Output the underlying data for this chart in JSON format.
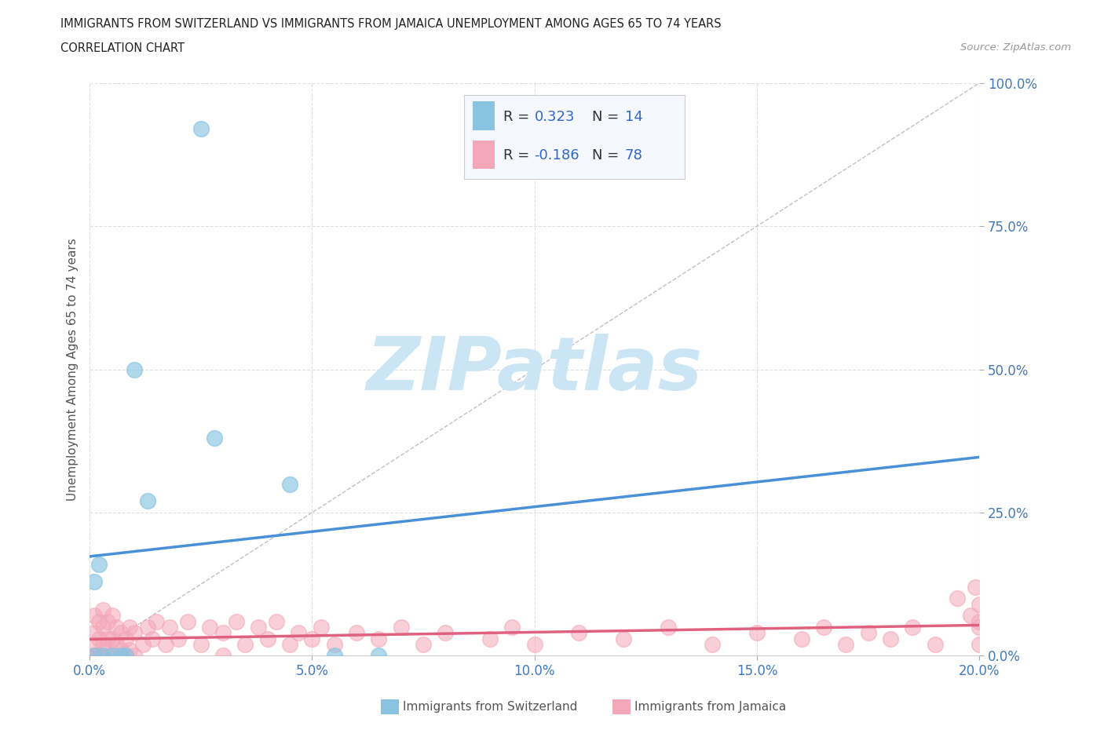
{
  "title_line1": "IMMIGRANTS FROM SWITZERLAND VS IMMIGRANTS FROM JAMAICA UNEMPLOYMENT AMONG AGES 65 TO 74 YEARS",
  "title_line2": "CORRELATION CHART",
  "source_text": "Source: ZipAtlas.com",
  "ylabel": "Unemployment Among Ages 65 to 74 years",
  "xlim": [
    0.0,
    0.2
  ],
  "ylim": [
    0.0,
    1.0
  ],
  "xticks": [
    0.0,
    0.05,
    0.1,
    0.15,
    0.2
  ],
  "xticklabels": [
    "0.0%",
    "5.0%",
    "10.0%",
    "15.0%",
    "20.0%"
  ],
  "yticks": [
    0.0,
    0.25,
    0.5,
    0.75,
    1.0
  ],
  "yticklabels": [
    "0.0%",
    "25.0%",
    "50.0%",
    "75.0%",
    "100.0%"
  ],
  "switzerland_color": "#89c4e1",
  "switzerland_line_color": "#4a90d9",
  "jamaica_color": "#f4a7b9",
  "jamaica_line_color": "#e06080",
  "background_color": "#ffffff",
  "grid_color": "#d8d8d8",
  "watermark_color": "#cce5f5",
  "legend_text_color": "#3366cc",
  "legend_label_color": "#333333",
  "sw_x": [
    0.001,
    0.001,
    0.002,
    0.003,
    0.005,
    0.007,
    0.008,
    0.01,
    0.013,
    0.025,
    0.028,
    0.045,
    0.055,
    0.065
  ],
  "sw_y": [
    0.0,
    0.13,
    0.16,
    0.0,
    0.0,
    0.0,
    0.0,
    0.5,
    0.27,
    0.92,
    0.38,
    0.3,
    0.0,
    0.0
  ],
  "jm_x": [
    0.001,
    0.001,
    0.001,
    0.001,
    0.001,
    0.002,
    0.002,
    0.002,
    0.003,
    0.003,
    0.003,
    0.003,
    0.004,
    0.004,
    0.004,
    0.005,
    0.005,
    0.005,
    0.006,
    0.006,
    0.006,
    0.007,
    0.007,
    0.008,
    0.008,
    0.009,
    0.009,
    0.01,
    0.01,
    0.012,
    0.013,
    0.014,
    0.015,
    0.017,
    0.018,
    0.02,
    0.022,
    0.025,
    0.027,
    0.03,
    0.03,
    0.033,
    0.035,
    0.038,
    0.04,
    0.042,
    0.045,
    0.047,
    0.05,
    0.052,
    0.055,
    0.06,
    0.065,
    0.07,
    0.075,
    0.08,
    0.09,
    0.095,
    0.1,
    0.11,
    0.12,
    0.13,
    0.14,
    0.15,
    0.16,
    0.165,
    0.17,
    0.175,
    0.18,
    0.185,
    0.19,
    0.195,
    0.198,
    0.199,
    0.2,
    0.2,
    0.2,
    0.2
  ],
  "jm_y": [
    0.0,
    0.0,
    0.02,
    0.04,
    0.07,
    0.0,
    0.03,
    0.06,
    0.0,
    0.02,
    0.05,
    0.08,
    0.0,
    0.03,
    0.06,
    0.0,
    0.03,
    0.07,
    0.0,
    0.02,
    0.05,
    0.01,
    0.04,
    0.0,
    0.03,
    0.01,
    0.05,
    0.0,
    0.04,
    0.02,
    0.05,
    0.03,
    0.06,
    0.02,
    0.05,
    0.03,
    0.06,
    0.02,
    0.05,
    0.0,
    0.04,
    0.06,
    0.02,
    0.05,
    0.03,
    0.06,
    0.02,
    0.04,
    0.03,
    0.05,
    0.02,
    0.04,
    0.03,
    0.05,
    0.02,
    0.04,
    0.03,
    0.05,
    0.02,
    0.04,
    0.03,
    0.05,
    0.02,
    0.04,
    0.03,
    0.05,
    0.02,
    0.04,
    0.03,
    0.05,
    0.02,
    0.1,
    0.07,
    0.12,
    0.05,
    0.09,
    0.06,
    0.02
  ]
}
